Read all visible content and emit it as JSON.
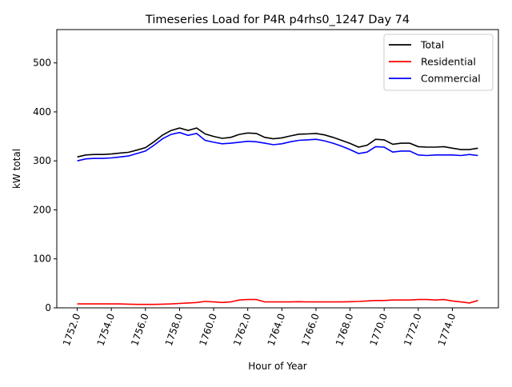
{
  "chart_data": {
    "type": "line",
    "title": "Timeseries Load for P4R p4rhs0_1247  Day 74",
    "xlabel": "Hour of Year",
    "ylabel": "kW total",
    "xlim": [
      1750.8,
      1776.7
    ],
    "ylim": [
      0,
      568
    ],
    "grid": false,
    "legend_position": "top-right",
    "xticks": [
      1752,
      1754,
      1756,
      1758,
      1760,
      1762,
      1764,
      1766,
      1768,
      1770,
      1772,
      1774
    ],
    "xtick_labels": [
      "1752.0",
      "1754.0",
      "1756.0",
      "1758.0",
      "1760.0",
      "1762.0",
      "1764.0",
      "1766.0",
      "1768.0",
      "1770.0",
      "1772.0",
      "1774.0"
    ],
    "yticks": [
      0,
      100,
      200,
      300,
      400,
      500
    ],
    "ytick_labels": [
      "0",
      "100",
      "200",
      "300",
      "400",
      "500"
    ],
    "x_start": 1752,
    "x_step": 0.5,
    "series": [
      {
        "name": "Total",
        "color": "#000000",
        "values": [
          308,
          312,
          313,
          313,
          314,
          316,
          317.5,
          322,
          327,
          339,
          352.5,
          362,
          367,
          362,
          367,
          355,
          350,
          346,
          348,
          354,
          357,
          356,
          348,
          345,
          347,
          351,
          354.5,
          355,
          356,
          353,
          348,
          342,
          335.5,
          328,
          332,
          344,
          343,
          334,
          336,
          336,
          329,
          328,
          328,
          329,
          326,
          323,
          323,
          326
        ]
      },
      {
        "name": "Residential",
        "color": "#ff0000",
        "values": [
          8,
          8,
          8,
          8,
          8,
          8,
          7.5,
          7,
          7,
          7,
          7.5,
          8,
          9,
          10,
          11,
          13,
          12,
          11,
          12,
          16,
          17,
          17,
          12,
          12,
          12,
          12,
          12.5,
          12,
          12,
          12,
          12,
          12,
          12.5,
          13,
          14,
          15,
          15,
          16,
          16,
          16,
          17,
          17,
          16,
          17,
          14,
          12,
          10,
          15
        ]
      },
      {
        "name": "Commercial",
        "color": "#0000ff",
        "values": [
          300,
          304,
          305,
          305,
          306,
          308,
          310,
          315,
          320,
          332,
          345,
          354,
          358,
          352,
          356,
          342,
          338,
          335,
          336,
          338,
          340,
          339,
          336,
          333,
          335,
          339,
          342,
          343,
          344,
          341,
          336,
          330,
          323,
          315,
          318,
          329,
          328,
          318,
          320,
          320,
          312,
          311,
          312,
          312,
          312,
          311,
          313,
          311
        ]
      }
    ]
  }
}
